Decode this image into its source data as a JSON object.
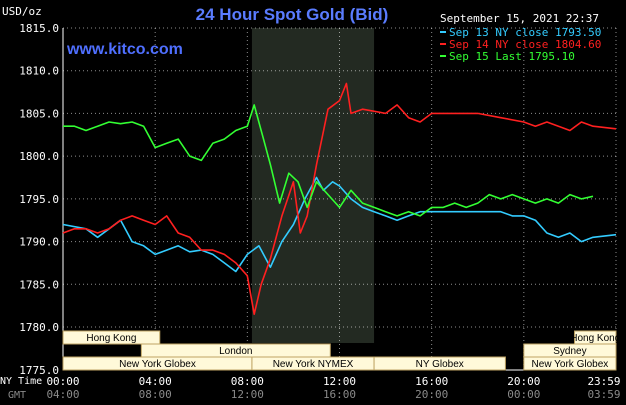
{
  "colors": {
    "background": "#000000",
    "title": "#5a7cff",
    "site": "#4f6fff",
    "axis_text": "#ffffff",
    "gmt_text": "#8a8a8a",
    "grid": "#ffffff",
    "ny_session_shade": "#232a22",
    "session_box_fill": "#fff9d9",
    "session_box_stroke": "#bfa463",
    "session_text": "#000000"
  },
  "header": {
    "unit": "USD/oz",
    "title": "24 Hour Spot Gold (Bid)",
    "datetime": "September 15, 2021 22:37",
    "site": "www.kitco.com"
  },
  "chart_data": {
    "type": "line",
    "title": "24 Hour Spot Gold (Bid)",
    "ylabel": "USD/oz",
    "xlabel": "NY Time",
    "ylim": [
      1775.0,
      1815.0
    ],
    "yticks": [
      "1815.0",
      "1810.0",
      "1805.0",
      "1800.0",
      "1795.0",
      "1790.0",
      "1785.0",
      "1780.0",
      "1775.0"
    ],
    "xlim": [
      0,
      24
    ],
    "xticks_ny": [
      {
        "h": 0,
        "label": "00:00"
      },
      {
        "h": 4,
        "label": "04:00"
      },
      {
        "h": 8,
        "label": "08:00"
      },
      {
        "h": 12,
        "label": "12:00"
      },
      {
        "h": 16,
        "label": "16:00"
      },
      {
        "h": 20,
        "label": "20:00"
      },
      {
        "h": 24,
        "label": "23:59"
      }
    ],
    "xticks_gmt": [
      {
        "h": 0,
        "label": "04:00"
      },
      {
        "h": 4,
        "label": "08:00"
      },
      {
        "h": 8,
        "label": "12:00"
      },
      {
        "h": 12,
        "label": "16:00"
      },
      {
        "h": 16,
        "label": "20:00"
      },
      {
        "h": 20,
        "label": "00:00"
      },
      {
        "h": 24,
        "label": "03:59"
      }
    ],
    "x_row_labels": {
      "ny": "NY Time",
      "gmt": "GMT"
    },
    "ny_session": [
      8.2,
      13.5
    ],
    "grid": true,
    "legend_position": "top-right",
    "series": [
      {
        "name": "Sep 13 NY close 1793.50",
        "color": "#33ccff",
        "points": [
          [
            0,
            1792.0
          ],
          [
            1,
            1791.5
          ],
          [
            1.5,
            1790.5
          ],
          [
            2,
            1791.5
          ],
          [
            2.5,
            1792.5
          ],
          [
            3,
            1790.0
          ],
          [
            3.5,
            1789.5
          ],
          [
            4,
            1788.5
          ],
          [
            4.5,
            1789.0
          ],
          [
            5,
            1789.5
          ],
          [
            5.5,
            1788.8
          ],
          [
            6,
            1789.0
          ],
          [
            6.5,
            1788.5
          ],
          [
            7,
            1787.5
          ],
          [
            7.5,
            1786.5
          ],
          [
            8,
            1788.5
          ],
          [
            8.5,
            1789.5
          ],
          [
            9,
            1787.0
          ],
          [
            9.5,
            1790.0
          ],
          [
            10,
            1792.0
          ],
          [
            10.5,
            1795.0
          ],
          [
            11,
            1797.5
          ],
          [
            11.3,
            1796.0
          ],
          [
            11.7,
            1797.0
          ],
          [
            12,
            1796.5
          ],
          [
            12.5,
            1795.0
          ],
          [
            13,
            1794.0
          ],
          [
            13.5,
            1793.5
          ],
          [
            14,
            1793.0
          ],
          [
            14.5,
            1792.5
          ],
          [
            15,
            1793.0
          ],
          [
            15.5,
            1793.5
          ],
          [
            16,
            1793.5
          ],
          [
            17,
            1793.5
          ],
          [
            18,
            1793.5
          ],
          [
            19,
            1793.5
          ],
          [
            19.5,
            1793.0
          ],
          [
            20,
            1793.0
          ],
          [
            20.5,
            1792.5
          ],
          [
            21,
            1791.0
          ],
          [
            21.5,
            1790.5
          ],
          [
            22,
            1791.0
          ],
          [
            22.5,
            1790.0
          ],
          [
            23,
            1790.5
          ],
          [
            24,
            1790.8
          ]
        ]
      },
      {
        "name": "Sep 14 NY close 1804.60",
        "color": "#ff2020",
        "points": [
          [
            0,
            1791.0
          ],
          [
            0.5,
            1791.5
          ],
          [
            1,
            1791.5
          ],
          [
            1.5,
            1791.0
          ],
          [
            2,
            1791.5
          ],
          [
            2.5,
            1792.5
          ],
          [
            3,
            1793.0
          ],
          [
            3.5,
            1792.5
          ],
          [
            4,
            1792.0
          ],
          [
            4.5,
            1793.0
          ],
          [
            5,
            1791.0
          ],
          [
            5.5,
            1790.5
          ],
          [
            6,
            1789.0
          ],
          [
            6.5,
            1789.0
          ],
          [
            7,
            1788.5
          ],
          [
            7.5,
            1787.5
          ],
          [
            8,
            1786.0
          ],
          [
            8.3,
            1781.5
          ],
          [
            8.6,
            1785.0
          ],
          [
            9,
            1788.0
          ],
          [
            9.5,
            1793.0
          ],
          [
            10,
            1797.0
          ],
          [
            10.3,
            1791.0
          ],
          [
            10.6,
            1793.0
          ],
          [
            11,
            1799.0
          ],
          [
            11.5,
            1805.5
          ],
          [
            12,
            1806.5
          ],
          [
            12.3,
            1808.5
          ],
          [
            12.5,
            1805.0
          ],
          [
            13,
            1805.5
          ],
          [
            14,
            1805.0
          ],
          [
            14.5,
            1806.0
          ],
          [
            15,
            1804.5
          ],
          [
            15.5,
            1804.0
          ],
          [
            16,
            1805.0
          ],
          [
            17,
            1805.0
          ],
          [
            18,
            1805.0
          ],
          [
            19,
            1804.5
          ],
          [
            20,
            1804.0
          ],
          [
            20.5,
            1803.5
          ],
          [
            21,
            1804.0
          ],
          [
            21.5,
            1803.5
          ],
          [
            22,
            1803.0
          ],
          [
            22.5,
            1804.0
          ],
          [
            23,
            1803.5
          ],
          [
            24,
            1803.2
          ]
        ]
      },
      {
        "name": "Sep 15 Last 1795.10",
        "color": "#33ff33",
        "points": [
          [
            0,
            1803.5
          ],
          [
            0.5,
            1803.5
          ],
          [
            1,
            1803.0
          ],
          [
            1.5,
            1803.5
          ],
          [
            2,
            1804.0
          ],
          [
            2.5,
            1803.8
          ],
          [
            3,
            1804.0
          ],
          [
            3.5,
            1803.5
          ],
          [
            4,
            1801.0
          ],
          [
            4.5,
            1801.5
          ],
          [
            5,
            1802.0
          ],
          [
            5.5,
            1800.0
          ],
          [
            6,
            1799.5
          ],
          [
            6.5,
            1801.5
          ],
          [
            7,
            1802.0
          ],
          [
            7.5,
            1803.0
          ],
          [
            8,
            1803.5
          ],
          [
            8.3,
            1806.0
          ],
          [
            8.7,
            1802.0
          ],
          [
            9,
            1799.0
          ],
          [
            9.4,
            1794.5
          ],
          [
            9.8,
            1798.0
          ],
          [
            10.2,
            1797.0
          ],
          [
            10.6,
            1794.0
          ],
          [
            11,
            1797.0
          ],
          [
            11.5,
            1795.5
          ],
          [
            12,
            1794.0
          ],
          [
            12.5,
            1796.0
          ],
          [
            13,
            1794.5
          ],
          [
            13.5,
            1794.0
          ],
          [
            14,
            1793.5
          ],
          [
            14.5,
            1793.0
          ],
          [
            15,
            1793.5
          ],
          [
            15.5,
            1793.0
          ],
          [
            16,
            1794.0
          ],
          [
            16.5,
            1794.0
          ],
          [
            17,
            1794.5
          ],
          [
            17.5,
            1794.0
          ],
          [
            18,
            1794.5
          ],
          [
            18.5,
            1795.5
          ],
          [
            19,
            1795.0
          ],
          [
            19.5,
            1795.5
          ],
          [
            20,
            1795.0
          ],
          [
            20.5,
            1794.5
          ],
          [
            21,
            1795.0
          ],
          [
            21.5,
            1794.5
          ],
          [
            22,
            1795.5
          ],
          [
            22.5,
            1795.0
          ],
          [
            23,
            1795.3
          ]
        ]
      }
    ],
    "sessions": [
      {
        "label": "Hong Kong",
        "row": 0,
        "start": 0,
        "end": 4.2
      },
      {
        "label": "Hong Kong",
        "row": 0,
        "start": 22.2,
        "end": 24
      },
      {
        "label": "London",
        "row": 1,
        "start": 3.4,
        "end": 11.6
      },
      {
        "label": "Sydney",
        "row": 1,
        "start": 20.0,
        "end": 24
      },
      {
        "label": "New York Globex",
        "row": 2,
        "start": 0,
        "end": 8.2
      },
      {
        "label": "New York NYMEX",
        "row": 2,
        "start": 8.2,
        "end": 13.5
      },
      {
        "label": "NY Globex",
        "row": 2,
        "start": 13.5,
        "end": 19.2
      },
      {
        "label": "New York Globex",
        "row": 2,
        "start": 20.0,
        "end": 24
      }
    ],
    "session_row_blanks": [
      {
        "row": 0,
        "start": 0,
        "end": 0
      },
      {
        "row": 1,
        "start": 0,
        "end": 3.4
      },
      {
        "row": 2,
        "start": 0,
        "end": 0
      }
    ]
  }
}
